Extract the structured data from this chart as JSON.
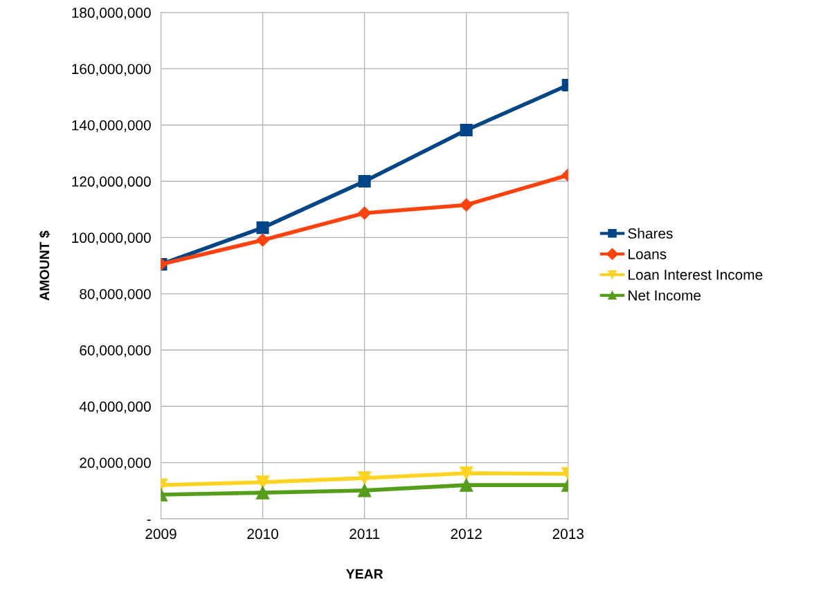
{
  "chart_data": {
    "type": "line",
    "xlabel": "YEAR",
    "ylabel": "AMOUNT $",
    "x": [
      2009,
      2010,
      2011,
      2012,
      2013
    ],
    "series": [
      {
        "name": "Shares",
        "color": "#004586",
        "marker": "square",
        "values": [
          90500000,
          103500000,
          120000000,
          138200000,
          154200000
        ]
      },
      {
        "name": "Loans",
        "color": "#ff420e",
        "marker": "diamond",
        "values": [
          90500000,
          99100000,
          108700000,
          111600000,
          122200000
        ]
      },
      {
        "name": "Loan Interest Income",
        "color": "#ffd320",
        "marker": "triangle_down",
        "values": [
          12000000,
          13000000,
          14500000,
          16200000,
          16000000
        ]
      },
      {
        "name": "Net Income",
        "color": "#579d1c",
        "marker": "triangle",
        "values": [
          8600000,
          9300000,
          10100000,
          12000000,
          12000000
        ]
      }
    ],
    "xlim": [
      2009,
      2013
    ],
    "xticks": [
      2009,
      2010,
      2011,
      2012,
      2013
    ],
    "ylim": [
      0,
      180000000
    ],
    "yticks": [
      {
        "value": 0,
        "label": "-"
      },
      {
        "value": 20000000,
        "label": "20,000,000"
      },
      {
        "value": 40000000,
        "label": "40,000,000"
      },
      {
        "value": 60000000,
        "label": "60,000,000"
      },
      {
        "value": 80000000,
        "label": "80,000,000"
      },
      {
        "value": 100000000,
        "label": "100,000,000"
      },
      {
        "value": 120000000,
        "label": "120,000,000"
      },
      {
        "value": 140000000,
        "label": "140,000,000"
      },
      {
        "value": 160000000,
        "label": "160,000,000"
      },
      {
        "value": 180000000,
        "label": "180,000,000"
      }
    ],
    "grid": true,
    "legend": "right",
    "line_style": "solid"
  }
}
